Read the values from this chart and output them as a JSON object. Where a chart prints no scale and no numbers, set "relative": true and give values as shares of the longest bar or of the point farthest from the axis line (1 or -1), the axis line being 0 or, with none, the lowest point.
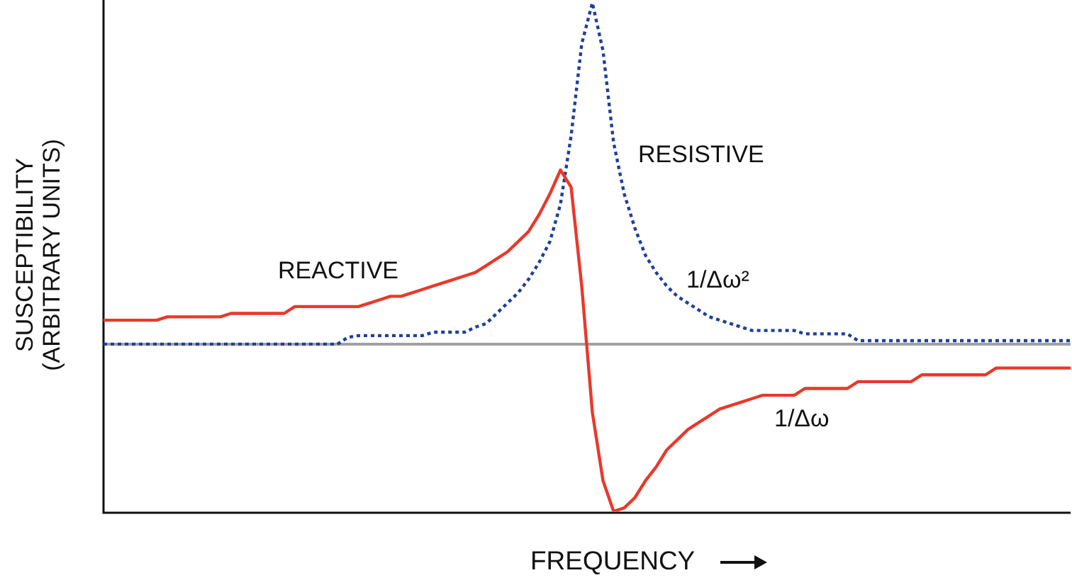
{
  "chart_data": {
    "type": "line",
    "relative": true,
    "xlabel": "FREQUENCY",
    "ylabel": "SUSCEPTIBILITY\n(ARBITRARY UNITS)",
    "categories": [
      null,
      null,
      null,
      null,
      null,
      null,
      null,
      null,
      null,
      null,
      null,
      null,
      null,
      null,
      null,
      null,
      null,
      null,
      null,
      null,
      null,
      null,
      null,
      null,
      null,
      null,
      null,
      null,
      null,
      null,
      null,
      null,
      null,
      null,
      null,
      null,
      null,
      null,
      null,
      null,
      null,
      null,
      null,
      null,
      null,
      null,
      null,
      null,
      null,
      null,
      null,
      null,
      null,
      null,
      null,
      null,
      null,
      null,
      null,
      null,
      null,
      null,
      null,
      null,
      null,
      null,
      null,
      null,
      null,
      null,
      null,
      null,
      null,
      null,
      null,
      null,
      null,
      null,
      null,
      null,
      null,
      null,
      null,
      null,
      null,
      null,
      null,
      null,
      null,
      null,
      null,
      null
    ],
    "series": [
      {
        "name": "REACTIVE",
        "color": "#e8392b",
        "line_style": "solid",
        "values": [
          0.07,
          0.07,
          0.07,
          0.07,
          0.07,
          0.07,
          0.08,
          0.08,
          0.08,
          0.08,
          0.08,
          0.08,
          0.09,
          0.09,
          0.09,
          0.09,
          0.09,
          0.09,
          0.11,
          0.11,
          0.11,
          0.11,
          0.11,
          0.11,
          0.11,
          0.12,
          0.13,
          0.14,
          0.14,
          0.15,
          0.16,
          0.17,
          0.18,
          0.19,
          0.2,
          0.21,
          0.23,
          0.25,
          0.27,
          0.3,
          0.33,
          0.38,
          0.44,
          0.51,
          0.46,
          0.17,
          -0.2,
          -0.4,
          -0.49,
          -0.48,
          -0.45,
          -0.4,
          -0.36,
          -0.31,
          -0.28,
          -0.25,
          -0.23,
          -0.21,
          -0.19,
          -0.18,
          -0.17,
          -0.16,
          -0.15,
          -0.15,
          -0.15,
          -0.15,
          -0.13,
          -0.13,
          -0.13,
          -0.13,
          -0.13,
          -0.11,
          -0.11,
          -0.11,
          -0.11,
          -0.11,
          -0.11,
          -0.09,
          -0.09,
          -0.09,
          -0.09,
          -0.09,
          -0.09,
          -0.09,
          -0.07,
          -0.07,
          -0.07,
          -0.07,
          -0.07,
          -0.07,
          -0.07,
          -0.07
        ]
      },
      {
        "name": "RESISTIVE",
        "color": "#1f3f9a",
        "line_style": "dotted",
        "values": [
          0,
          0,
          0,
          0,
          0,
          0,
          0,
          0,
          0,
          0,
          0,
          0,
          0,
          0,
          0,
          0,
          0,
          0,
          0,
          0,
          0,
          0,
          0,
          0.02,
          0.025,
          0.025,
          0.025,
          0.025,
          0.025,
          0.025,
          0.025,
          0.035,
          0.035,
          0.035,
          0.035,
          0.05,
          0.06,
          0.09,
          0.12,
          0.15,
          0.19,
          0.24,
          0.3,
          0.41,
          0.61,
          0.88,
          1,
          0.86,
          0.59,
          0.44,
          0.34,
          0.26,
          0.21,
          0.17,
          0.14,
          0.12,
          0.1,
          0.08,
          0.07,
          0.06,
          0.05,
          0.04,
          0.04,
          0.04,
          0.04,
          0.04,
          0.03,
          0.03,
          0.03,
          0.03,
          0.03,
          0.01,
          0.01,
          0.01,
          0.01,
          0.01,
          0.01,
          0.01,
          0.01,
          0.01,
          0.01,
          0.01,
          0.01,
          0.01,
          0.01,
          0.01,
          0.01,
          0.01,
          0.01,
          0.01,
          0.01,
          0.01
        ]
      }
    ],
    "annotations": [
      "1/Δω²",
      "1/Δω"
    ]
  }
}
